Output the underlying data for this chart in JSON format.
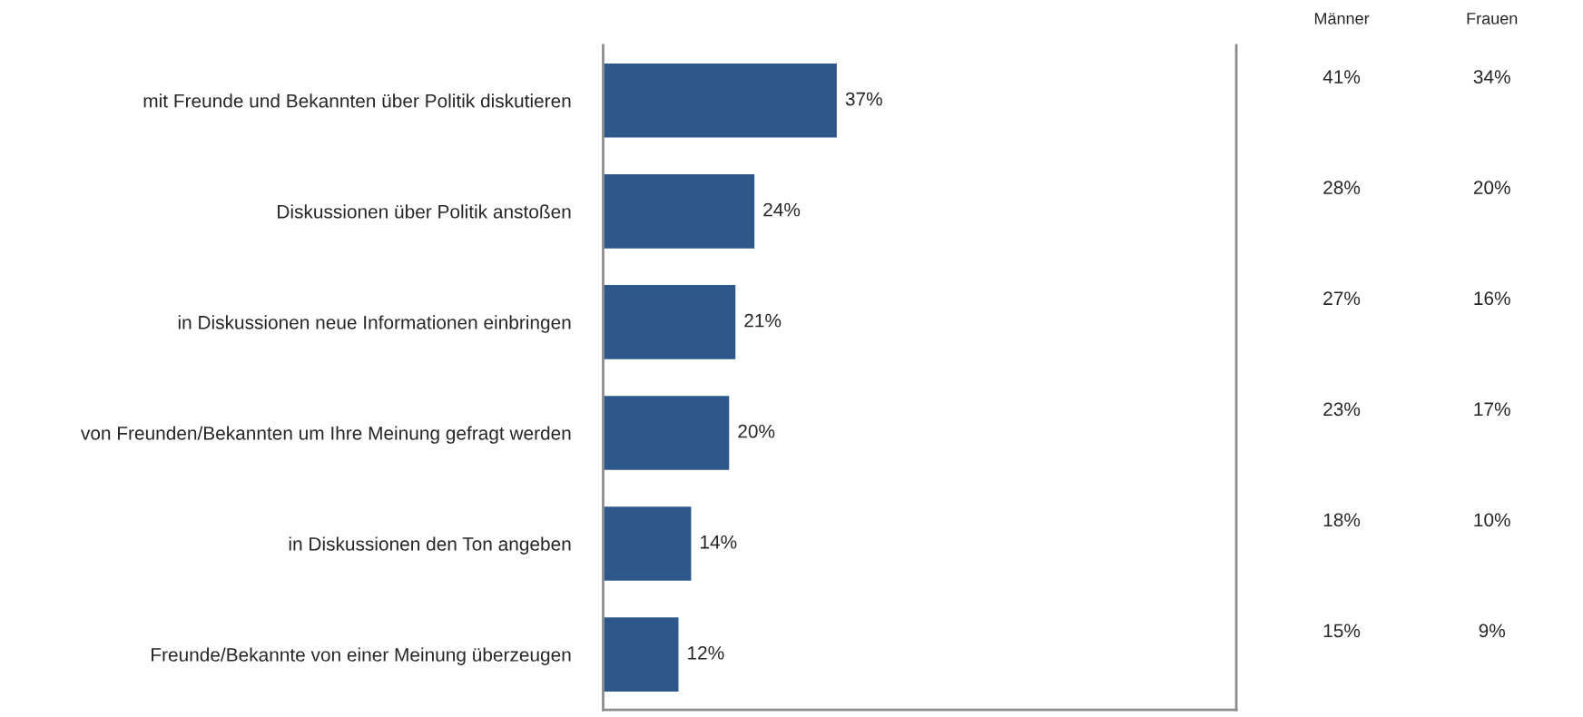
{
  "chart_data": [
    {
      "type": "bar",
      "orientation": "horizontal",
      "categories": [
        "mit Freunde und Bekannten über Politik diskutieren",
        "Diskussionen über Politik anstoßen",
        "in Diskussionen neue Informationen einbringen",
        "von Freunden/Bekannten um Ihre Meinung gefragt werden",
        "in Diskussionen den Ton angeben",
        "Freunde/Bekannte von einer Meinung überzeugen"
      ],
      "values": [
        37,
        24,
        21,
        20,
        14,
        12
      ],
      "value_labels": [
        "37%",
        "24%",
        "21%",
        "20%",
        "14%",
        "12%"
      ],
      "color": "#2e5889",
      "xlim": [
        0,
        100
      ],
      "tick_labels": "y",
      "grid": false,
      "legend": false
    },
    {
      "type": "other",
      "categories": [
        "Männer",
        "Frauen"
      ],
      "annotations": [
        "41%",
        "34%",
        "28%",
        "20%",
        "27%",
        "16%",
        "23%",
        "17%",
        "18%",
        "10%",
        "15%",
        "9%"
      ]
    }
  ]
}
